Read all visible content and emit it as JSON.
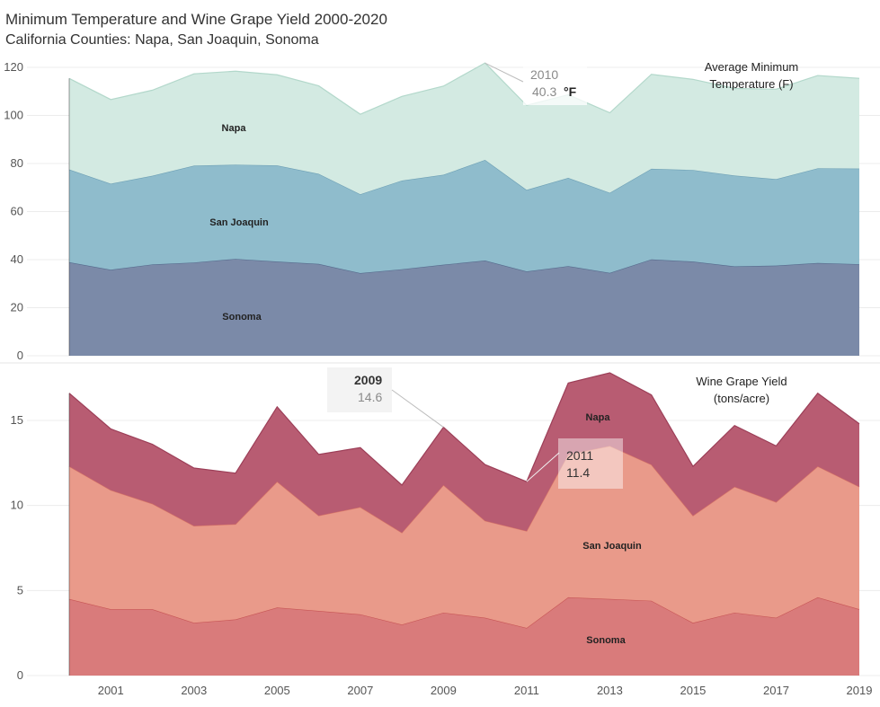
{
  "header": {
    "title": "Minimum Temperature and Wine Grape Yield 2000-2020",
    "subtitle": "California Counties: Napa, San Joaquin, Sonoma"
  },
  "colors": {
    "temp_sonoma": "#7b8aa8",
    "temp_san_joaquin": "#8fbccc",
    "temp_napa": "#d3eae2",
    "yield_sonoma": "#d97b7b",
    "yield_san_joaquin": "#e99a8a",
    "yield_napa": "#b85c72"
  },
  "chart_data": [
    {
      "type": "area",
      "stacked": true,
      "title": "Average Minimum Temperature (F)",
      "title_lines": [
        "Average Minimum",
        "Temperature (F)"
      ],
      "x": [
        2000,
        2001,
        2002,
        2003,
        2004,
        2005,
        2006,
        2007,
        2008,
        2009,
        2010,
        2011,
        2012,
        2013,
        2014,
        2015,
        2016,
        2017,
        2018,
        2019
      ],
      "series": [
        {
          "name": "Sonoma",
          "values": [
            38.9,
            35.8,
            38.0,
            38.8,
            40.3,
            39.2,
            38.2,
            34.4,
            36.0,
            37.9,
            39.6,
            35.1,
            37.3,
            34.5,
            40.1,
            39.2,
            37.2,
            37.5,
            38.6,
            38.1
          ]
        },
        {
          "name": "San Joaquin",
          "values": [
            38.6,
            35.8,
            36.9,
            40.3,
            39.2,
            40.0,
            37.5,
            32.8,
            36.9,
            37.4,
            41.9,
            33.9,
            36.7,
            33.3,
            37.7,
            38.1,
            37.8,
            36.0,
            39.4,
            39.8
          ]
        },
        {
          "name": "Napa",
          "values": [
            37.9,
            35.0,
            35.6,
            38.2,
            38.9,
            37.7,
            36.6,
            33.3,
            35.0,
            36.9,
            40.3,
            35.2,
            34.6,
            33.3,
            39.3,
            37.7,
            36.2,
            37.4,
            38.6,
            37.5
          ]
        }
      ],
      "y_ticks": [
        0,
        20,
        40,
        60,
        80,
        100,
        120
      ],
      "ylim": [
        0,
        125
      ],
      "annotation": {
        "year_label": "2010",
        "value_label": "40.3",
        "unit": "°F",
        "x": 2010
      },
      "grid": true
    },
    {
      "type": "area",
      "stacked": true,
      "title": "Wine Grape Yield (tons/acre)",
      "title_lines": [
        "Wine Grape Yield",
        "(tons/acre)"
      ],
      "x": [
        2000,
        2001,
        2002,
        2003,
        2004,
        2005,
        2006,
        2007,
        2008,
        2009,
        2010,
        2011,
        2012,
        2013,
        2014,
        2015,
        2016,
        2017,
        2018,
        2019
      ],
      "series": [
        {
          "name": "Sonoma",
          "values": [
            4.5,
            3.9,
            3.9,
            3.1,
            3.3,
            4.0,
            3.8,
            3.6,
            3.0,
            3.7,
            3.4,
            2.8,
            4.6,
            4.5,
            4.4,
            3.1,
            3.7,
            3.4,
            4.6,
            3.9
          ]
        },
        {
          "name": "San Joaquin",
          "values": [
            7.8,
            7.0,
            6.2,
            5.7,
            5.6,
            7.4,
            5.6,
            6.3,
            5.4,
            7.5,
            5.7,
            5.7,
            8.4,
            9.0,
            8.0,
            6.3,
            7.4,
            6.8,
            7.7,
            7.2
          ]
        },
        {
          "name": "Napa",
          "values": [
            4.3,
            3.6,
            3.5,
            3.4,
            3.0,
            4.4,
            3.6,
            3.5,
            2.8,
            3.4,
            3.3,
            2.9,
            4.2,
            4.3,
            4.1,
            2.9,
            3.6,
            3.3,
            4.3,
            3.7
          ]
        }
      ],
      "y_ticks": [
        0,
        5,
        10,
        15
      ],
      "ylim": [
        0,
        17.6
      ],
      "annotations": [
        {
          "year_label": "2009",
          "value_label": "14.6",
          "x": 2009
        },
        {
          "year_label": "2011",
          "value_label": "11.4",
          "x": 2011
        }
      ],
      "grid": true
    }
  ],
  "x_axis": {
    "ticks": [
      2001,
      2003,
      2005,
      2007,
      2009,
      2011,
      2013,
      2015,
      2017,
      2019
    ],
    "labels": [
      "2001",
      "2003",
      "2005",
      "2007",
      "2009",
      "2011",
      "2013",
      "2015",
      "2017",
      "2019"
    ]
  }
}
